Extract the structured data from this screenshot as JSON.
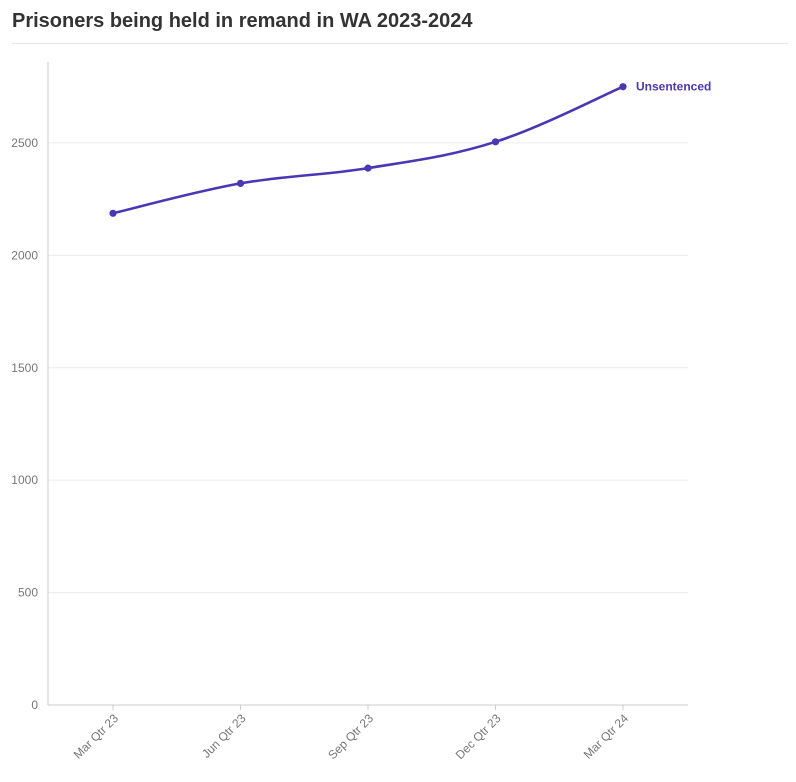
{
  "title": "Prisoners being held in remand in WA 2023-2024",
  "colors": {
    "series": "#4a37b6",
    "grid": "#ececec",
    "axis": "#cccccc",
    "tick_text": "#777777"
  },
  "chart_data": {
    "type": "line",
    "title": "Prisoners being held in remand in WA 2023-2024",
    "xlabel": "",
    "ylabel": "",
    "categories": [
      "Mar Qtr 23",
      "Jun Qtr 23",
      "Sep Qtr 23",
      "Dec Qtr 23",
      "Mar Qtr 24"
    ],
    "series": [
      {
        "name": "Unsentenced",
        "values": [
          2187,
          2320,
          2388,
          2505,
          2750
        ]
      }
    ],
    "ylim": [
      0,
      2860
    ],
    "yticks": [
      0,
      500,
      1000,
      1500,
      2000,
      2500
    ],
    "grid": true,
    "legend": "end-of-line label"
  }
}
